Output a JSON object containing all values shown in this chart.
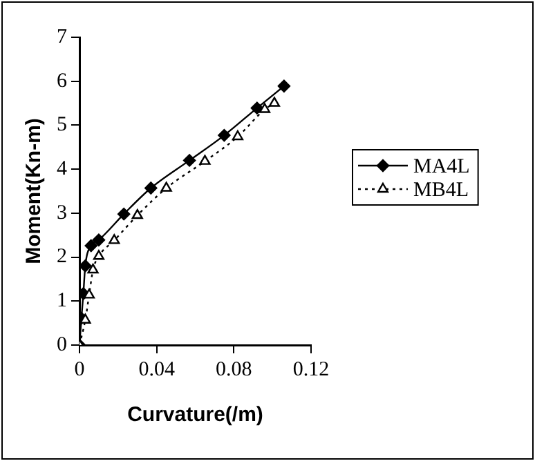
{
  "chart_data": {
    "type": "line",
    "xlabel": "Curvature(/m)",
    "ylabel": "Moment(Kn-m)",
    "xlim": [
      0,
      0.12
    ],
    "xticks": [
      0,
      0.04,
      0.08,
      0.12
    ],
    "ylim": [
      0,
      7
    ],
    "yticks": [
      0,
      1,
      2,
      3,
      4,
      5,
      6,
      7
    ],
    "grid": false,
    "legend": "right",
    "series": [
      {
        "name": "MA4L",
        "color": "#000000",
        "marker": "diamond",
        "line_style": "solid",
        "x": [
          0,
          0.001,
          0.002,
          0.003,
          0.006,
          0.01,
          0.023,
          0.037,
          0.057,
          0.075,
          0.092,
          0.106
        ],
        "values": [
          0,
          0.61,
          1.17,
          1.8,
          2.26,
          2.39,
          2.98,
          3.57,
          4.2,
          4.77,
          5.39,
          5.89
        ]
      },
      {
        "name": "MB4L",
        "color": "#000000",
        "marker": "triangle",
        "line_style": "dotted",
        "x": [
          0,
          0.003,
          0.005,
          0.007,
          0.01,
          0.018,
          0.03,
          0.045,
          0.065,
          0.082,
          0.096,
          0.101
        ],
        "values": [
          0,
          0.57,
          1.14,
          1.71,
          2.02,
          2.38,
          2.95,
          3.57,
          4.18,
          4.74,
          5.36,
          5.5
        ]
      }
    ]
  }
}
